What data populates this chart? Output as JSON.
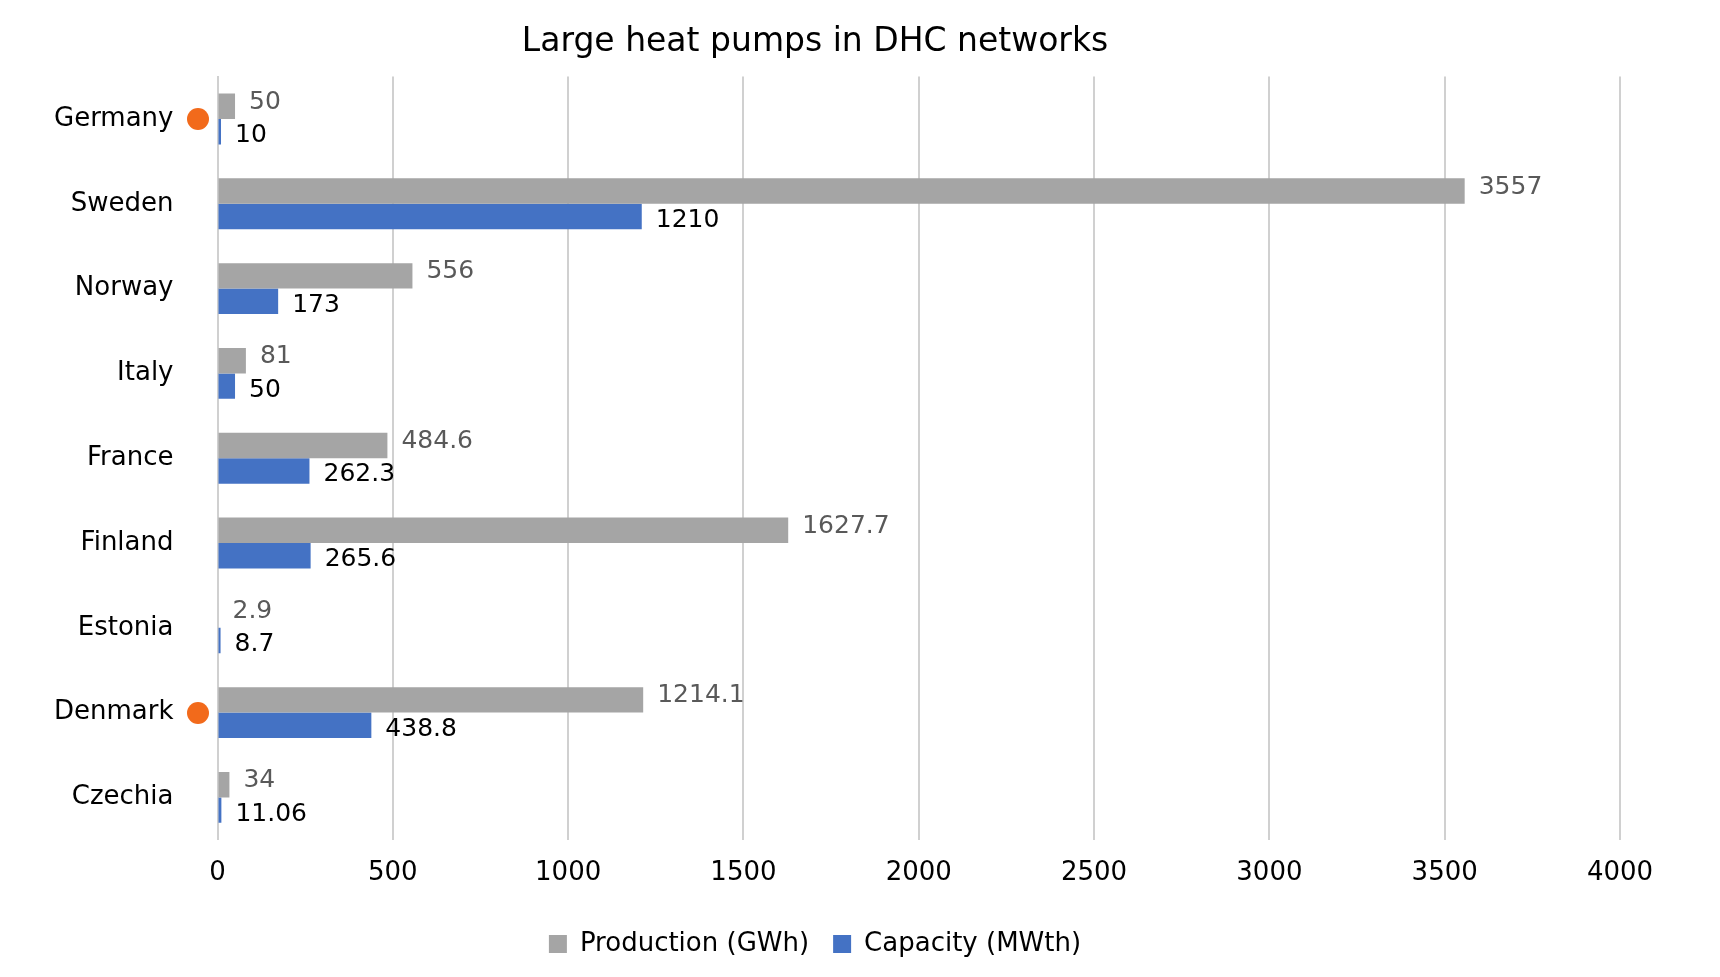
{
  "chart_data": {
    "type": "bar",
    "orientation": "horizontal",
    "title": "Large heat pumps in DHC networks",
    "categories": [
      "Germany",
      "Sweden",
      "Norway",
      "Italy",
      "France",
      "Finland",
      "Estonia",
      "Denmark",
      "Czechia"
    ],
    "series": [
      {
        "name": "Production (GWh)",
        "color": "#a5a5a5",
        "values": [
          50,
          3557,
          556,
          81,
          484.6,
          1627.7,
          2.9,
          1214.1,
          34
        ]
      },
      {
        "name": "Capacity (MWth)",
        "color": "#4472c4",
        "values": [
          10,
          1210,
          173,
          50,
          262.3,
          265.6,
          8.7,
          438.8,
          11.06
        ]
      }
    ],
    "xlim": [
      0,
      4000
    ],
    "xticks": [
      0,
      500,
      1000,
      1500,
      2000,
      2500,
      3000,
      3500,
      4000
    ],
    "grid": "x",
    "legend": "bottom",
    "data_labels": true
  }
}
